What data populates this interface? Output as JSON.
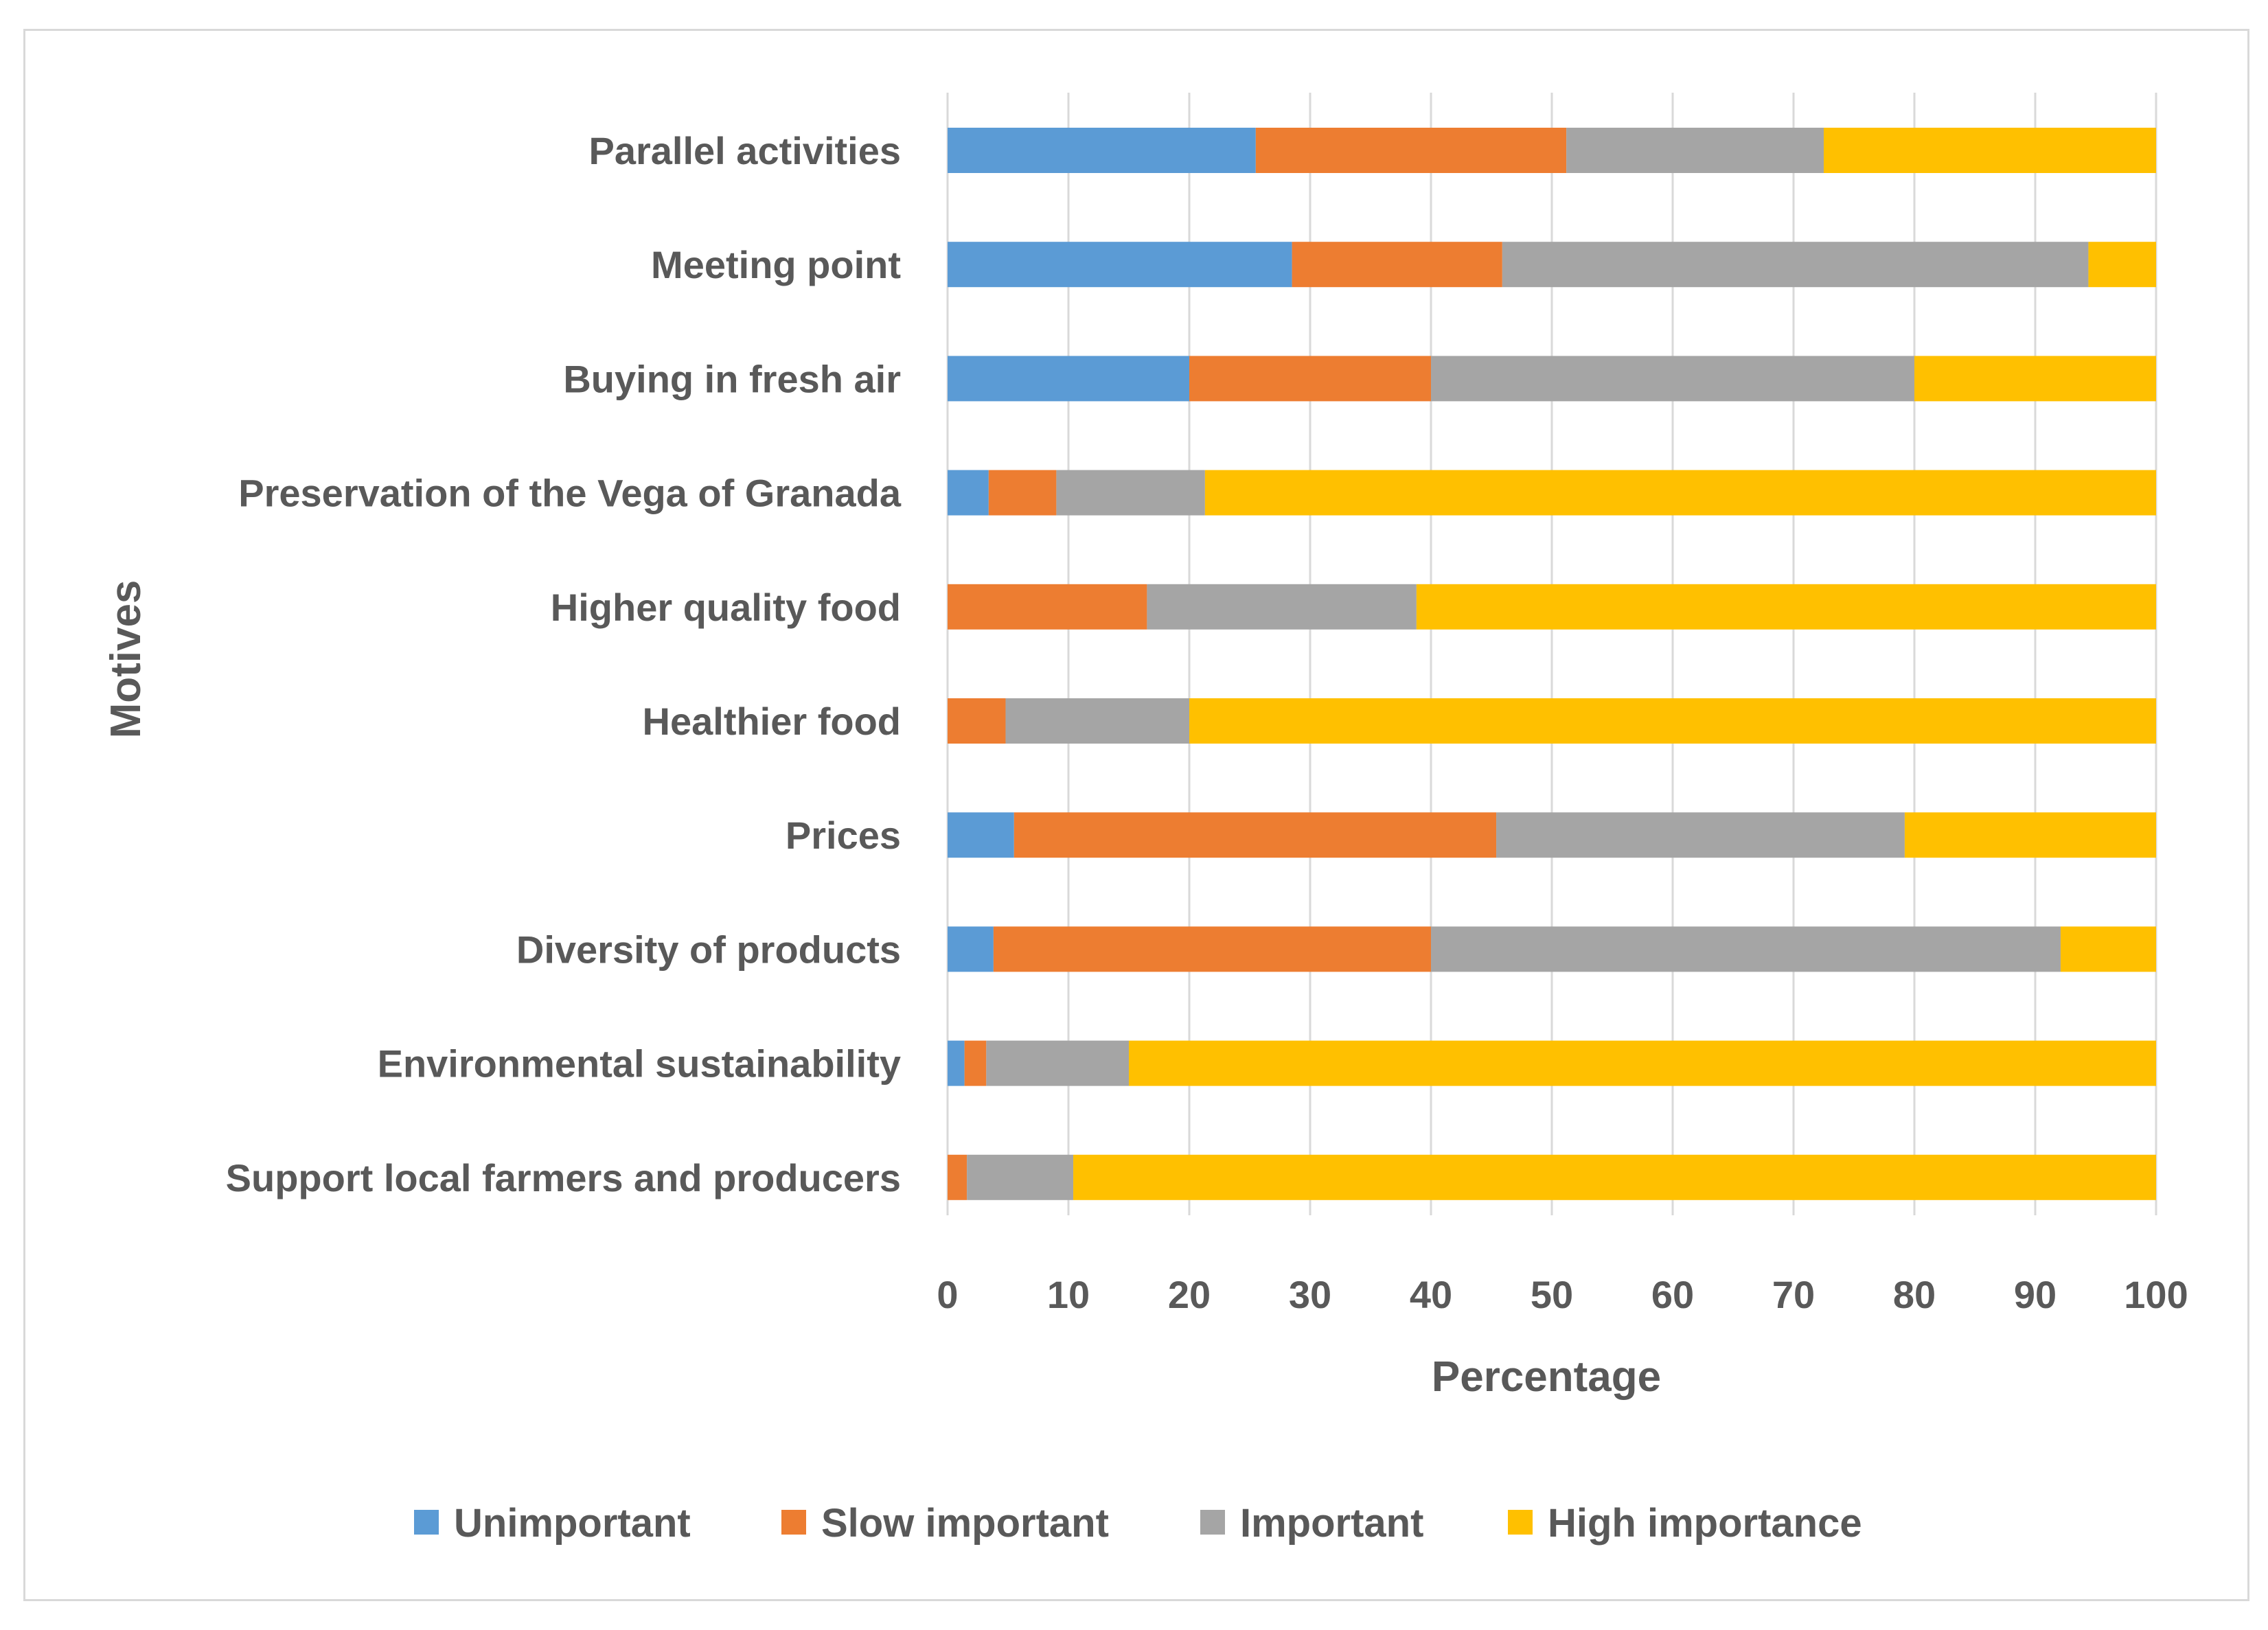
{
  "chart_data": {
    "type": "bar",
    "orientation": "horizontal",
    "stacked": true,
    "title": "",
    "xlabel": "Percentage",
    "ylabel": "Motives",
    "xlim": [
      0,
      100
    ],
    "xticks": [
      "0",
      "10",
      "20",
      "30",
      "40",
      "50",
      "60",
      "70",
      "80",
      "90",
      "100"
    ],
    "grid": true,
    "legend_position": "bottom",
    "categories": [
      "Parallel activities",
      "Meeting point",
      "Buying in fresh air",
      "Preservation of the Vega of Granada",
      "Higher quality food",
      "Healthier food",
      "Prices",
      "Diversity of products",
      "Environmental sustainability",
      "Support local farmers and producers"
    ],
    "series": [
      {
        "name": "Unimportant",
        "color": "#5b9bd5",
        "values": [
          25.5,
          28.5,
          20,
          3.4,
          0,
          0,
          5.5,
          3.8,
          1.4,
          0
        ]
      },
      {
        "name": "Slow important",
        "color": "#ed7d31",
        "values": [
          25.7,
          17.4,
          20,
          5.6,
          16.5,
          4.8,
          39.9,
          36.2,
          1.8,
          1.6
        ]
      },
      {
        "name": "Important",
        "color": "#a5a5a5",
        "values": [
          21.3,
          48.5,
          40,
          12.3,
          22.3,
          15.2,
          33.8,
          52.1,
          11.8,
          8.8
        ]
      },
      {
        "name": "High importance",
        "color": "#ffc000",
        "values": [
          27.5,
          5.6,
          20,
          78.7,
          61.2,
          80,
          20.8,
          7.9,
          85,
          89.6
        ]
      }
    ]
  }
}
